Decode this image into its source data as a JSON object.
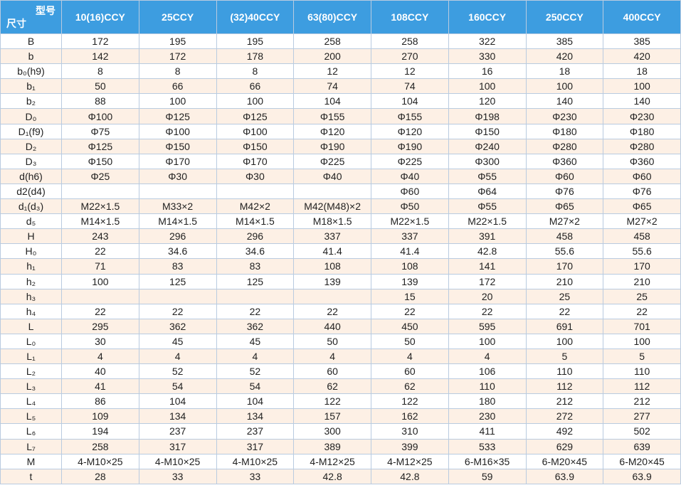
{
  "header": {
    "corner_top": "型号",
    "corner_bottom": "尺寸",
    "columns": [
      "10(16)CCY",
      "25CCY",
      "(32)40CCY",
      "63(80)CCY",
      "108CCY",
      "160CCY",
      "250CCY",
      "400CCY"
    ]
  },
  "table": {
    "rows": [
      [
        "B",
        172,
        195,
        195,
        258,
        258,
        322,
        385,
        385
      ],
      [
        "b",
        142,
        172,
        178,
        200,
        270,
        330,
        420,
        420
      ],
      [
        "b₀(h9)",
        8,
        8,
        8,
        12,
        12,
        16,
        18,
        18
      ],
      [
        "b₁",
        50,
        66,
        66,
        74,
        74,
        100,
        100,
        100
      ],
      [
        "b₂",
        88,
        100,
        100,
        104,
        104,
        120,
        140,
        140
      ],
      [
        "D₀",
        "Φ100",
        "Φ125",
        "Φ125",
        "Φ155",
        "Φ155",
        "Φ198",
        "Φ230",
        "Φ230"
      ],
      [
        "D₁(f9)",
        "Φ75",
        "Φ100",
        "Φ100",
        "Φ120",
        "Φ120",
        "Φ150",
        "Φ180",
        "Φ180"
      ],
      [
        "D₂",
        "Φ125",
        "Φ150",
        "Φ150",
        "Φ190",
        "Φ190",
        "Φ240",
        "Φ280",
        "Φ280"
      ],
      [
        "D₃",
        "Φ150",
        "Φ170",
        "Φ170",
        "Φ225",
        "Φ225",
        "Φ300",
        "Φ360",
        "Φ360"
      ],
      [
        "d(h6)",
        "Φ25",
        "Φ30",
        "Φ30",
        "Φ40",
        "Φ40",
        "Φ55",
        "Φ60",
        "Φ60"
      ],
      [
        "d2(d4)",
        null,
        null,
        null,
        null,
        "Φ60",
        "Φ64",
        "Φ76",
        "Φ76"
      ],
      [
        "d₁(d₃)",
        "M22×1.5",
        "M33×2",
        "M42×2",
        "M42(M48)×2",
        "Φ50",
        "Φ55",
        "Φ65",
        "Φ65"
      ],
      [
        "d₅",
        "M14×1.5",
        "M14×1.5",
        "M14×1.5",
        "M18×1.5",
        "M22×1.5",
        "M22×1.5",
        "M27×2",
        "M27×2"
      ],
      [
        "H",
        243,
        296,
        296,
        337,
        337,
        391,
        458,
        458
      ],
      [
        "H₀",
        22,
        34.6,
        34.6,
        41.4,
        41.4,
        42.8,
        55.6,
        55.6
      ],
      [
        "h₁",
        71,
        83,
        83,
        108,
        108,
        141,
        170,
        170
      ],
      [
        "h₂",
        100,
        125,
        125,
        139,
        139,
        172,
        210,
        210
      ],
      [
        "h₃",
        null,
        null,
        null,
        null,
        15,
        20,
        25,
        25
      ],
      [
        "h₄",
        22,
        22,
        22,
        22,
        22,
        22,
        22,
        22
      ],
      [
        "L",
        295,
        362,
        362,
        440,
        450,
        595,
        691,
        701
      ],
      [
        "L₀",
        30,
        45,
        45,
        50,
        50,
        100,
        100,
        100
      ],
      [
        "L₁",
        4,
        4,
        4,
        4,
        4,
        4,
        5,
        5
      ],
      [
        "L₂",
        40,
        52,
        52,
        60,
        60,
        106,
        110,
        110
      ],
      [
        "L₃",
        41,
        54,
        54,
        62,
        62,
        110,
        112,
        112
      ],
      [
        "L₄",
        86,
        104,
        104,
        122,
        122,
        180,
        212,
        212
      ],
      [
        "L₅",
        109,
        134,
        134,
        157,
        162,
        230,
        272,
        277
      ],
      [
        "L₆",
        194,
        237,
        237,
        300,
        310,
        411,
        492,
        502
      ],
      [
        "L₇",
        258,
        317,
        317,
        389,
        399,
        533,
        629,
        639
      ],
      [
        "M",
        "4-M10×25",
        "4-M10×25",
        "4-M10×25",
        "4-M12×25",
        "4-M12×25",
        "6-M16×35",
        "6-M20×45",
        "6-M20×45"
      ],
      [
        "t",
        28,
        33,
        33,
        42.8,
        42.8,
        59,
        63.9,
        63.9
      ]
    ]
  }
}
